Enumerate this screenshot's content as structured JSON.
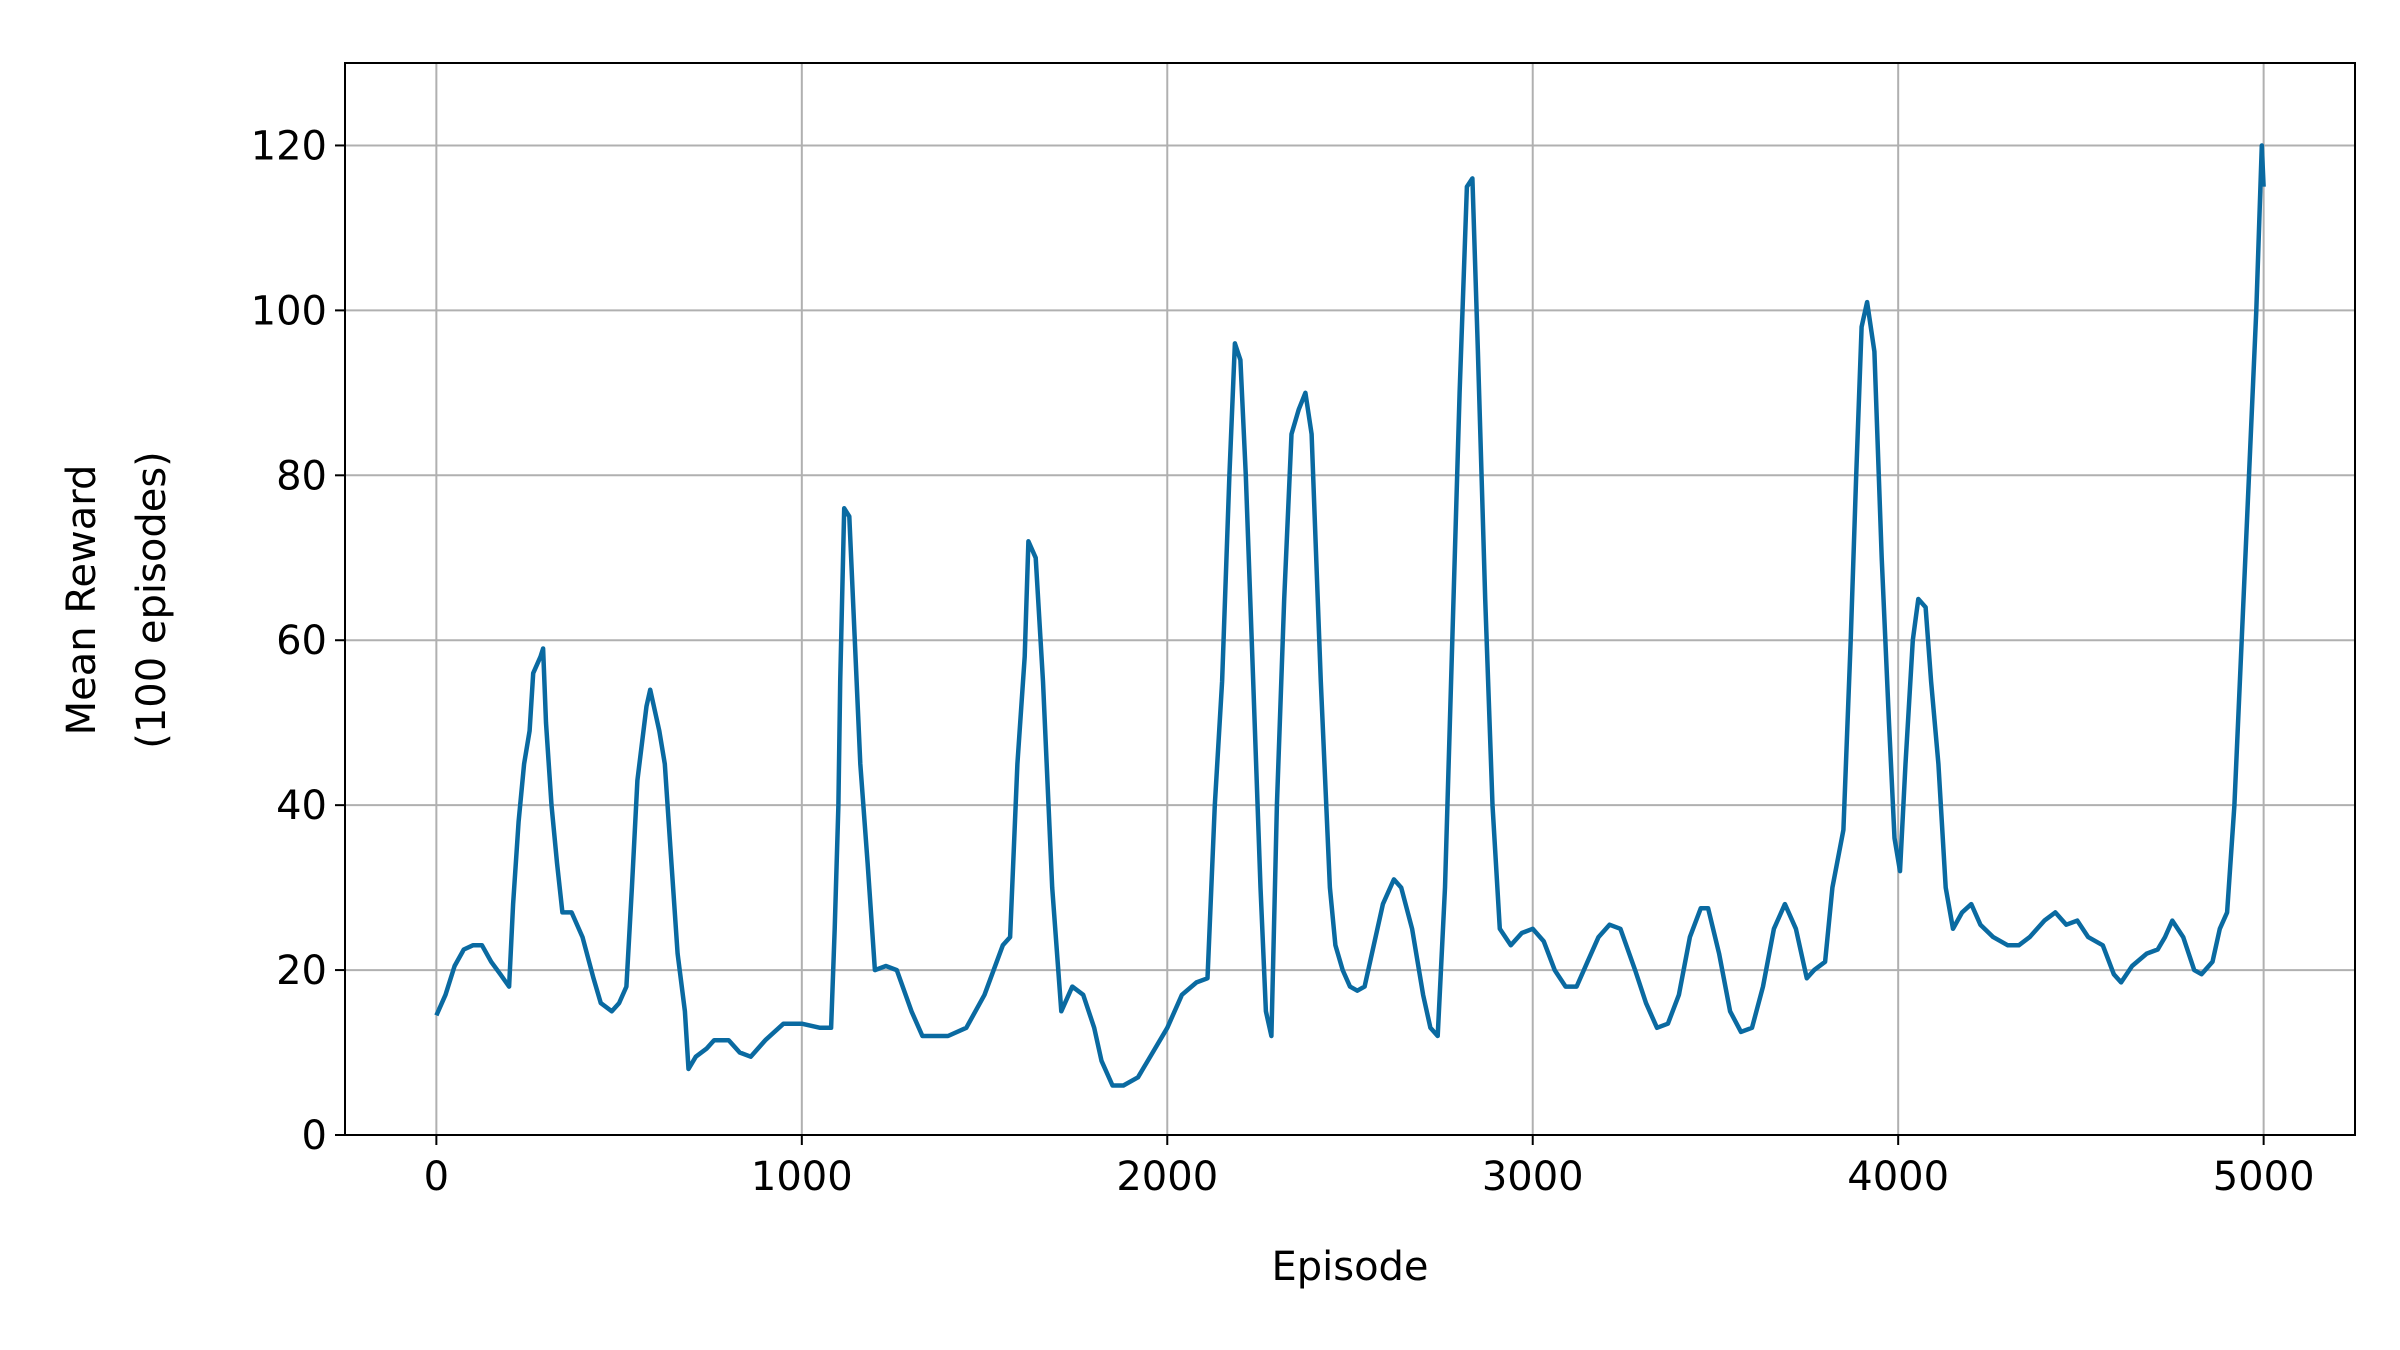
{
  "chart_data": {
    "type": "line",
    "x_label": "Episode",
    "y_label": [
      "Mean Reward",
      "(100 episodes)"
    ],
    "xlim": [
      -250,
      5250
    ],
    "ylim": [
      0,
      130
    ],
    "xticks": [
      0,
      1000,
      2000,
      3000,
      4000,
      5000
    ],
    "yticks": [
      0,
      20,
      40,
      60,
      80,
      100,
      120
    ],
    "grid": true,
    "series": [
      {
        "name": "Mean Reward",
        "color": "#0a6aa1",
        "x": [
          0,
          25,
          50,
          75,
          100,
          125,
          150,
          175,
          199,
          210,
          225,
          240,
          255,
          265,
          285,
          292,
          300,
          315,
          330,
          345,
          370,
          400,
          430,
          450,
          480,
          500,
          520,
          535,
          550,
          575,
          585,
          610,
          625,
          640,
          660,
          680,
          690,
          710,
          740,
          760,
          800,
          830,
          860,
          900,
          950,
          1000,
          1050,
          1080,
          1090,
          1100,
          1105,
          1116,
          1130,
          1145,
          1160,
          1180,
          1200,
          1230,
          1260,
          1300,
          1330,
          1400,
          1450,
          1500,
          1550,
          1570,
          1590,
          1610,
          1620,
          1640,
          1660,
          1685,
          1710,
          1740,
          1770,
          1800,
          1820,
          1850,
          1880,
          1920,
          1960,
          2000,
          2040,
          2080,
          2110,
          2130,
          2150,
          2170,
          2185,
          2200,
          2215,
          2235,
          2255,
          2270,
          2285,
          2300,
          2320,
          2340,
          2360,
          2378,
          2395,
          2420,
          2445,
          2460,
          2480,
          2500,
          2520,
          2540,
          2560,
          2590,
          2620,
          2640,
          2670,
          2700,
          2720,
          2740,
          2760,
          2780,
          2800,
          2820,
          2835,
          2850,
          2870,
          2890,
          2910,
          2940,
          2970,
          3000,
          3030,
          3060,
          3090,
          3120,
          3150,
          3180,
          3210,
          3240,
          3280,
          3310,
          3340,
          3370,
          3400,
          3430,
          3460,
          3480,
          3510,
          3540,
          3570,
          3600,
          3630,
          3660,
          3690,
          3720,
          3750,
          3770,
          3800,
          3820,
          3850,
          3870,
          3885,
          3900,
          3915,
          3935,
          3955,
          3975,
          3990,
          4005,
          4020,
          4040,
          4055,
          4075,
          4090,
          4110,
          4130,
          4150,
          4175,
          4200,
          4225,
          4260,
          4300,
          4330,
          4360,
          4400,
          4430,
          4460,
          4490,
          4520,
          4560,
          4590,
          4610,
          4640,
          4680,
          4710,
          4730,
          4750,
          4780,
          4810,
          4830,
          4860,
          4880,
          4900,
          4920,
          4940,
          4960,
          4980,
          4995,
          5000
        ],
        "values": [
          14.5,
          17,
          20.5,
          22.5,
          23,
          23,
          21,
          19.5,
          18,
          28,
          38,
          45,
          49,
          56,
          58,
          59,
          50,
          40,
          33,
          27,
          27,
          24,
          19,
          16,
          15,
          16,
          18,
          30,
          43,
          52,
          54,
          49,
          45,
          35,
          22,
          15,
          8,
          9.5,
          10.5,
          11.5,
          11.5,
          10,
          9.5,
          11.5,
          13.5,
          13.5,
          13,
          13,
          25,
          40,
          55,
          76,
          75,
          60,
          45,
          33,
          20,
          20.5,
          20,
          15,
          12,
          12,
          13,
          17,
          23,
          24,
          45,
          58,
          72,
          70,
          55,
          30,
          15,
          18,
          17,
          13,
          9,
          6,
          6,
          7,
          10,
          13,
          17,
          18.5,
          19,
          40,
          55,
          80,
          96,
          94,
          80,
          55,
          30,
          15,
          12,
          40,
          65,
          85,
          88,
          90,
          85,
          55,
          30,
          23,
          20,
          18,
          17.5,
          18,
          22,
          28,
          31,
          30,
          25,
          17,
          13,
          12,
          30,
          60,
          90,
          115,
          116,
          95,
          65,
          40,
          25,
          23,
          24.5,
          25,
          23.5,
          20,
          18,
          18,
          21,
          24,
          25.5,
          25,
          20,
          16,
          13,
          13.5,
          17,
          24,
          27.5,
          27.5,
          22,
          15,
          12.5,
          13,
          18,
          25,
          28,
          25,
          19,
          20,
          21,
          30,
          37,
          60,
          80,
          98,
          101,
          95,
          70,
          50,
          36,
          32,
          45,
          60,
          65,
          64,
          55,
          45,
          30,
          25,
          27,
          28,
          25.5,
          24,
          23,
          23,
          24,
          26,
          27,
          25.5,
          26,
          24,
          23,
          19.5,
          18.5,
          20.5,
          22,
          22.5,
          24,
          26,
          24,
          20,
          19.5,
          21,
          25,
          27,
          40,
          60,
          80,
          100,
          120,
          115
        ]
      }
    ]
  }
}
